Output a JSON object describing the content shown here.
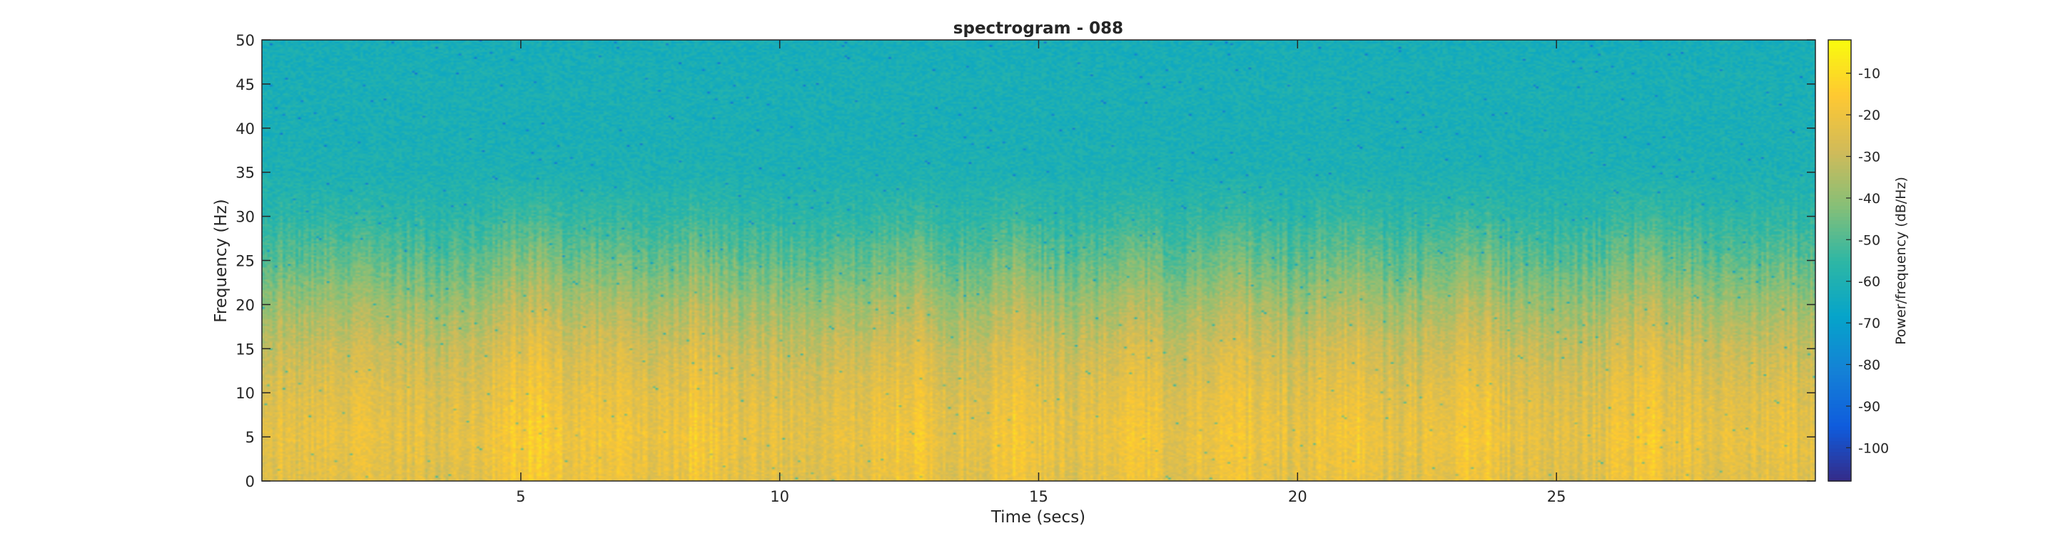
{
  "chart_data": {
    "type": "heatmap",
    "title": "spectrogram - 088",
    "xlabel": "Time (secs)",
    "ylabel": "Frequency (Hz)",
    "xlim": [
      0,
      30
    ],
    "ylim": [
      0,
      50
    ],
    "x_ticks": [
      5,
      10,
      15,
      20,
      25
    ],
    "x_tick_labels": [
      "5",
      "10",
      "15",
      "20",
      "25"
    ],
    "y_ticks": [
      0,
      5,
      10,
      15,
      20,
      25,
      30,
      35,
      40,
      45,
      50
    ],
    "y_tick_labels": [
      "0",
      "5",
      "10",
      "15",
      "20",
      "25",
      "30",
      "35",
      "40",
      "45",
      "50"
    ],
    "colorbar": {
      "label": "Power/frequency (dB/Hz)",
      "range": [
        -108,
        -2
      ],
      "ticks": [
        -10,
        -20,
        -30,
        -40,
        -50,
        -60,
        -70,
        -80,
        -90,
        -100
      ],
      "tick_labels": [
        "-10",
        "-20",
        "-30",
        "-40",
        "-50",
        "-60",
        "-70",
        "-80",
        "-90",
        "-100"
      ],
      "colormap": "parula",
      "colormap_stops": [
        "#352a87",
        "#0f5cdd",
        "#1481d6",
        "#06a4ca",
        "#2eb7a4",
        "#87bf77",
        "#d1bb59",
        "#fec832",
        "#f9fb0e"
      ]
    },
    "power_profile_db_by_frequency": {
      "frequency_hz": [
        0,
        5,
        10,
        15,
        20,
        25,
        30,
        35,
        40,
        45,
        50
      ],
      "mean_db": [
        -24,
        -22,
        -25,
        -30,
        -38,
        -48,
        -56,
        -60,
        -61,
        -61,
        -62
      ]
    },
    "high_power_time_regions_secs": [
      4.8,
      5.5,
      6.8,
      8.4,
      12.5,
      14.5,
      16.8,
      18.8,
      21.0,
      23.5,
      26.8
    ],
    "grid": false,
    "legend": "none"
  }
}
